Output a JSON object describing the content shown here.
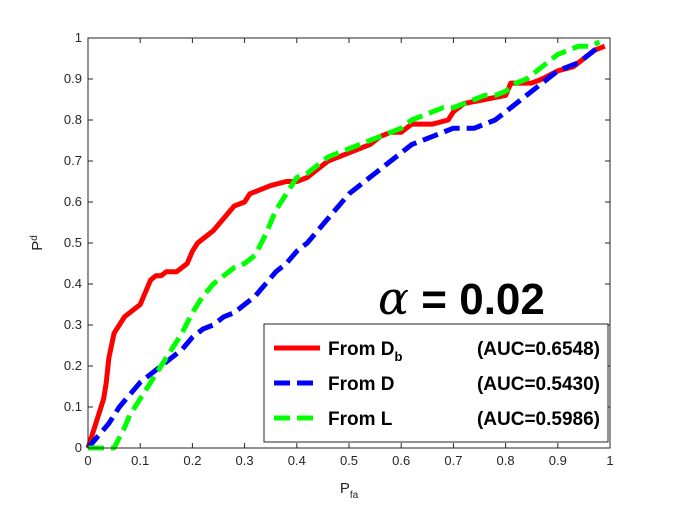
{
  "chart_data": {
    "type": "line",
    "xlabel": {
      "main": "P",
      "sub": "fa"
    },
    "ylabel": {
      "main": "P",
      "sub": "d"
    },
    "xlim": [
      0,
      1
    ],
    "ylim": [
      0,
      1
    ],
    "xticks": [
      "0",
      "0.1",
      "0.2",
      "0.3",
      "0.4",
      "0.5",
      "0.6",
      "0.7",
      "0.8",
      "0.9",
      "1"
    ],
    "yticks": [
      "0",
      "0.1",
      "0.2",
      "0.3",
      "0.4",
      "0.5",
      "0.6",
      "0.7",
      "0.8",
      "0.9",
      "1"
    ],
    "grid": false,
    "legend_position": "bottom-right",
    "annotation": {
      "symbol": "α",
      "text": " = 0.02"
    },
    "series": [
      {
        "name": "From D",
        "name_sub": "b",
        "auc": "(AUC=0.6548)",
        "color": "#ff0000",
        "style": "solid",
        "x": [
          0,
          0.01,
          0.02,
          0.03,
          0.035,
          0.04,
          0.045,
          0.05,
          0.06,
          0.065,
          0.07,
          0.08,
          0.1,
          0.11,
          0.12,
          0.13,
          0.14,
          0.15,
          0.16,
          0.17,
          0.19,
          0.2,
          0.21,
          0.22,
          0.24,
          0.26,
          0.28,
          0.3,
          0.31,
          0.33,
          0.35,
          0.38,
          0.4,
          0.42,
          0.44,
          0.46,
          0.48,
          0.5,
          0.52,
          0.54,
          0.56,
          0.58,
          0.6,
          0.62,
          0.66,
          0.69,
          0.7,
          0.72,
          0.76,
          0.8,
          0.81,
          0.85,
          0.87,
          0.9,
          0.93,
          0.95,
          0.97,
          0.99
        ],
        "y": [
          0,
          0.04,
          0.08,
          0.12,
          0.16,
          0.22,
          0.25,
          0.28,
          0.3,
          0.31,
          0.32,
          0.33,
          0.35,
          0.38,
          0.41,
          0.42,
          0.42,
          0.43,
          0.43,
          0.43,
          0.45,
          0.48,
          0.5,
          0.51,
          0.53,
          0.56,
          0.59,
          0.6,
          0.62,
          0.63,
          0.64,
          0.65,
          0.65,
          0.66,
          0.68,
          0.7,
          0.71,
          0.72,
          0.73,
          0.74,
          0.76,
          0.77,
          0.77,
          0.79,
          0.79,
          0.8,
          0.82,
          0.84,
          0.85,
          0.86,
          0.89,
          0.89,
          0.9,
          0.92,
          0.93,
          0.95,
          0.97,
          0.98
        ]
      },
      {
        "name": "From D",
        "name_sub": "",
        "auc": "(AUC=0.5430)",
        "color": "#0000ff",
        "style": "dashed",
        "x": [
          0,
          0.02,
          0.04,
          0.06,
          0.08,
          0.1,
          0.12,
          0.14,
          0.16,
          0.18,
          0.2,
          0.22,
          0.24,
          0.26,
          0.28,
          0.3,
          0.32,
          0.34,
          0.36,
          0.38,
          0.4,
          0.42,
          0.44,
          0.46,
          0.48,
          0.5,
          0.52,
          0.54,
          0.56,
          0.58,
          0.6,
          0.62,
          0.64,
          0.66,
          0.68,
          0.7,
          0.72,
          0.74,
          0.76,
          0.78,
          0.8,
          0.82,
          0.84,
          0.86,
          0.88,
          0.9,
          0.92,
          0.94,
          0.96,
          0.98
        ],
        "y": [
          0,
          0.03,
          0.06,
          0.1,
          0.13,
          0.16,
          0.18,
          0.2,
          0.22,
          0.24,
          0.27,
          0.29,
          0.3,
          0.32,
          0.33,
          0.35,
          0.37,
          0.4,
          0.43,
          0.45,
          0.48,
          0.5,
          0.53,
          0.56,
          0.59,
          0.62,
          0.64,
          0.66,
          0.68,
          0.7,
          0.72,
          0.74,
          0.75,
          0.76,
          0.77,
          0.78,
          0.78,
          0.78,
          0.79,
          0.8,
          0.82,
          0.84,
          0.86,
          0.88,
          0.9,
          0.92,
          0.93,
          0.94,
          0.96,
          0.98
        ]
      },
      {
        "name": "From L",
        "name_sub": "",
        "auc": "(AUC=0.5986)",
        "color": "#00ff00",
        "style": "dashed",
        "x": [
          0,
          0.02,
          0.05,
          0.07,
          0.08,
          0.1,
          0.12,
          0.14,
          0.16,
          0.18,
          0.2,
          0.22,
          0.24,
          0.26,
          0.28,
          0.3,
          0.32,
          0.34,
          0.36,
          0.38,
          0.4,
          0.42,
          0.44,
          0.46,
          0.48,
          0.5,
          0.52,
          0.54,
          0.56,
          0.58,
          0.6,
          0.62,
          0.64,
          0.66,
          0.68,
          0.7,
          0.72,
          0.74,
          0.76,
          0.78,
          0.8,
          0.82,
          0.84,
          0.86,
          0.88,
          0.9,
          0.92,
          0.94,
          0.96,
          0.98
        ],
        "y": [
          0,
          0,
          0,
          0.05,
          0.08,
          0.12,
          0.16,
          0.2,
          0.24,
          0.28,
          0.33,
          0.37,
          0.4,
          0.42,
          0.44,
          0.45,
          0.47,
          0.52,
          0.58,
          0.62,
          0.66,
          0.67,
          0.69,
          0.71,
          0.72,
          0.73,
          0.74,
          0.75,
          0.76,
          0.77,
          0.78,
          0.8,
          0.81,
          0.82,
          0.83,
          0.83,
          0.84,
          0.85,
          0.86,
          0.86,
          0.87,
          0.89,
          0.9,
          0.92,
          0.94,
          0.96,
          0.97,
          0.98,
          0.98,
          0.99
        ]
      }
    ]
  }
}
